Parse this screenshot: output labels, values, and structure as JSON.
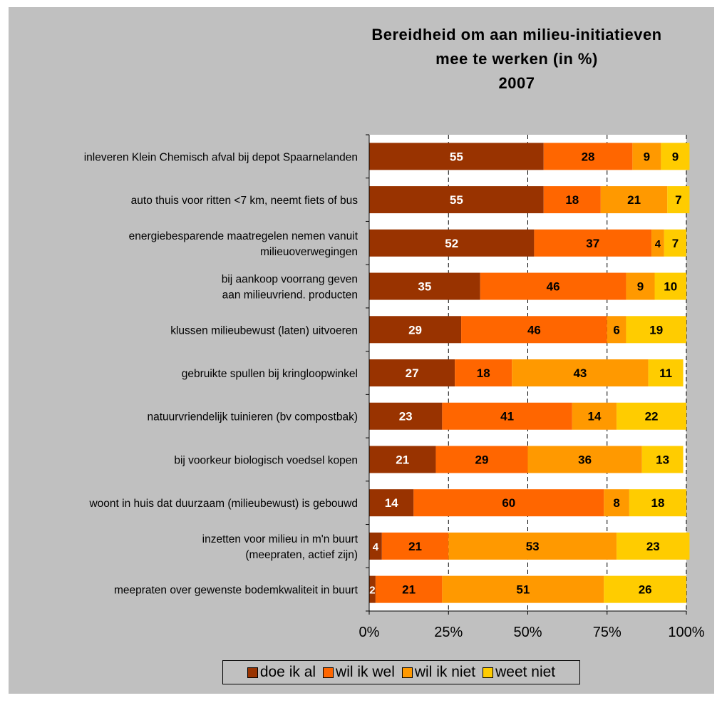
{
  "chart_data": {
    "type": "bar",
    "orientation": "horizontal",
    "stacked": "percent",
    "title": [
      "Bereidheid om aan milieu-initiatieven",
      "mee te werken (in %)",
      "2007"
    ],
    "categories": [
      [
        "inleveren Klein Chemisch afval bij depot Spaarnelanden"
      ],
      [
        "auto thuis voor ritten <7 km, neemt fiets of bus"
      ],
      [
        "energiebesparende maatregelen nemen vanuit",
        "milieuoverwegingen"
      ],
      [
        "bij aankoop voorrang geven",
        "aan milieuvriend. producten"
      ],
      [
        "klussen milieubewust (laten) uitvoeren"
      ],
      [
        "gebruikte spullen bij kringloopwinkel"
      ],
      [
        "natuurvriendelijk tuinieren (bv compostbak)"
      ],
      [
        "bij voorkeur biologisch voedsel kopen"
      ],
      [
        "woont in huis dat duurzaam (milieubewust) is gebouwd"
      ],
      [
        "inzetten voor milieu in m'n buurt",
        "(meepraten, actief zijn)"
      ],
      [
        "meepraten over gewenste bodemkwaliteit in buurt"
      ]
    ],
    "series": [
      {
        "name": "doe ik al",
        "color": "#993300",
        "label_color": "#ffffff",
        "values": [
          55,
          55,
          52,
          35,
          29,
          27,
          23,
          21,
          14,
          4,
          2
        ]
      },
      {
        "name": "wil ik wel",
        "color": "#ff6600",
        "label_color": "#000000",
        "values": [
          28,
          18,
          37,
          46,
          46,
          18,
          41,
          29,
          60,
          21,
          21
        ]
      },
      {
        "name": "wil ik niet",
        "color": "#ff9900",
        "label_color": "#000000",
        "values": [
          9,
          21,
          4,
          9,
          6,
          43,
          14,
          36,
          8,
          53,
          51
        ]
      },
      {
        "name": "weet niet",
        "color": "#ffcc00",
        "label_color": "#000000",
        "values": [
          9,
          7,
          7,
          10,
          19,
          11,
          22,
          13,
          18,
          23,
          26
        ]
      }
    ],
    "xaxis": {
      "ticks": [
        "0%",
        "25%",
        "50%",
        "75%",
        "100%"
      ],
      "range": [
        0,
        100
      ]
    },
    "grid": "vertical dashed",
    "legend_position": "bottom"
  }
}
